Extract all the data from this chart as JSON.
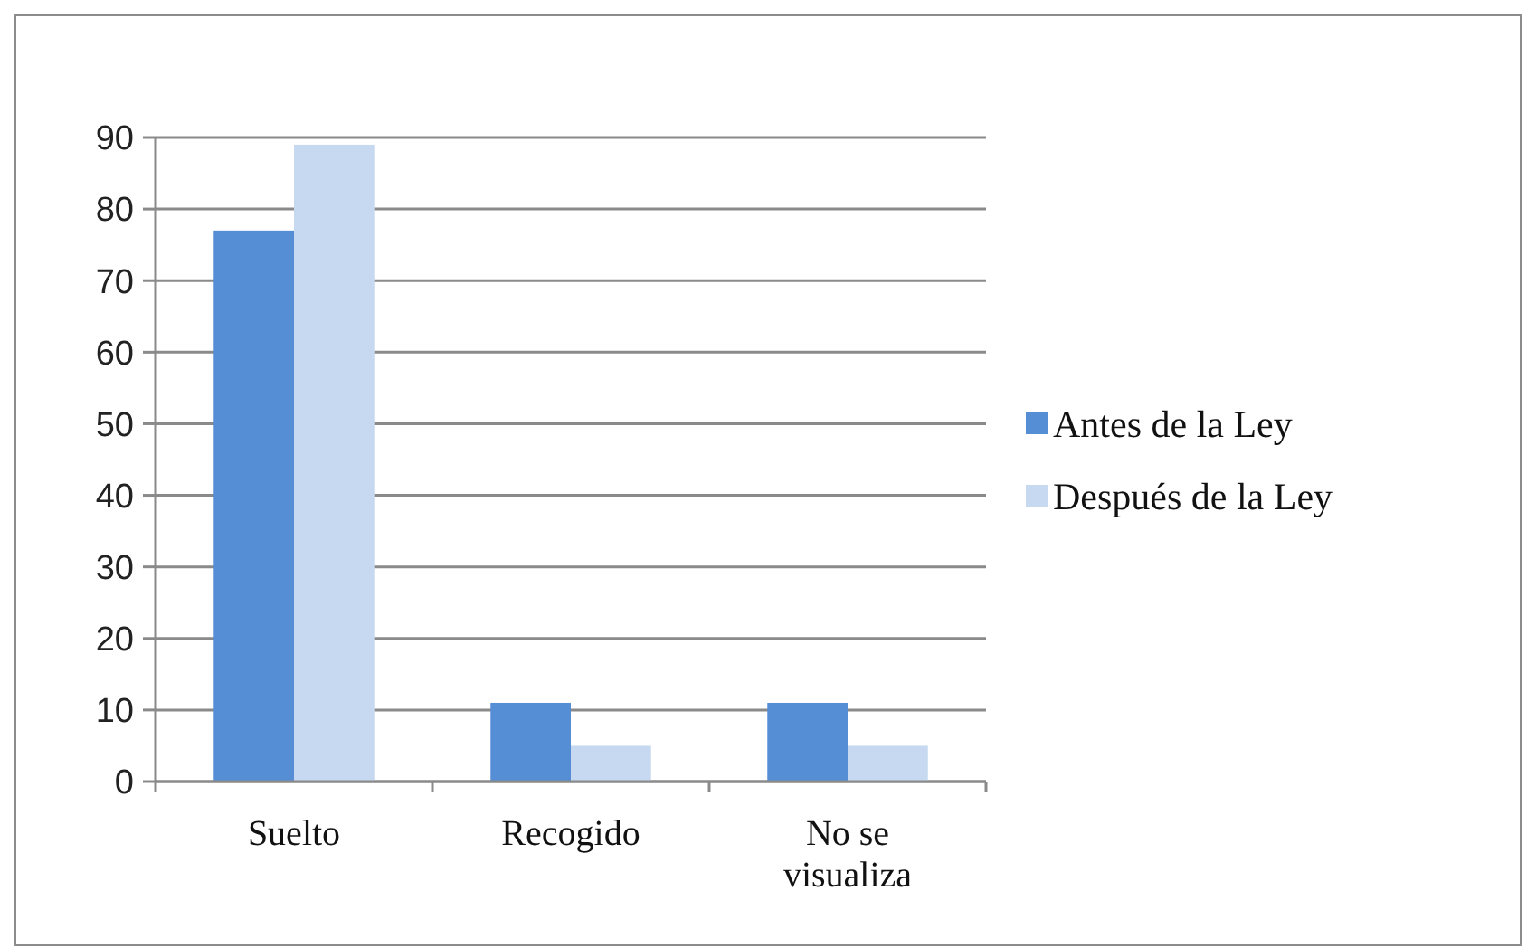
{
  "chart_data": {
    "type": "bar",
    "categories": [
      "Suelto",
      "Recogido",
      "No se visualiza"
    ],
    "series": [
      {
        "name": "Antes de la Ley",
        "color": "#558ed5",
        "values": [
          77,
          11,
          11
        ]
      },
      {
        "name": "Después de la Ley",
        "color": "#c6d9f1",
        "values": [
          89,
          5,
          5
        ]
      }
    ],
    "ylim": [
      0,
      90
    ],
    "yticks": [
      0,
      10,
      20,
      30,
      40,
      50,
      60,
      70,
      80,
      90
    ],
    "grid": "y",
    "legend": "right"
  }
}
